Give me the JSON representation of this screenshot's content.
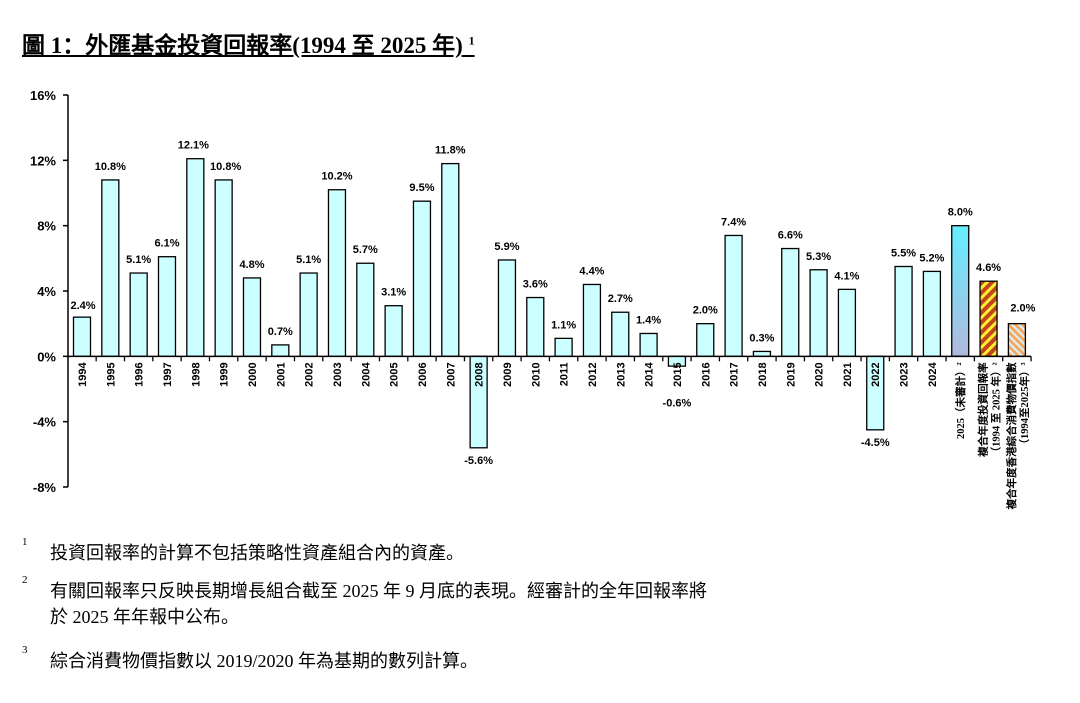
{
  "title": "圖 1：外匯基金投資回報率(1994 至 2025 年)",
  "title_note": "1",
  "chart_data": {
    "type": "bar",
    "title": "圖 1：外匯基金投資回報率(1994 至 2025 年)",
    "ylim": [
      -8,
      16
    ],
    "yticks": [
      "-8%",
      "-4%",
      "0%",
      "4%",
      "8%",
      "12%",
      "16%"
    ],
    "ytick_values": [
      -8,
      -4,
      0,
      4,
      8,
      12,
      16
    ],
    "grid": false,
    "categories": [
      "1994",
      "1995",
      "1996",
      "1997",
      "1998",
      "1999",
      "2000",
      "2001",
      "2002",
      "2003",
      "2004",
      "2005",
      "2006",
      "2007",
      "2008",
      "2009",
      "2010",
      "2011",
      "2012",
      "2013",
      "2014",
      "2015",
      "2016",
      "2017",
      "2018",
      "2019",
      "2020",
      "2021",
      "2022",
      "2023",
      "2024",
      "2025（未審計）²",
      "複合年度投資回報率（1994 至 2025 年）²",
      "複合年度香港綜合消費物價指數（1994至2025年）³"
    ],
    "values": [
      2.4,
      10.8,
      5.1,
      6.1,
      12.1,
      10.8,
      4.8,
      0.7,
      5.1,
      10.2,
      5.7,
      3.1,
      9.5,
      11.8,
      -5.6,
      5.9,
      3.6,
      1.1,
      4.4,
      2.7,
      1.4,
      -0.6,
      2.0,
      7.4,
      0.3,
      6.6,
      5.3,
      4.1,
      -4.5,
      5.5,
      5.2,
      8.0,
      4.6,
      2.0
    ],
    "data_labels": [
      "2.4%",
      "10.8%",
      "5.1%",
      "6.1%",
      "12.1%",
      "10.8%",
      "4.8%",
      "0.7%",
      "5.1%",
      "10.2%",
      "5.7%",
      "3.1%",
      "9.5%",
      "11.8%",
      "-5.6%",
      "5.9%",
      "3.6%",
      "1.1%",
      "4.4%",
      "2.7%",
      "1.4%",
      "-0.6%",
      "2.0%",
      "7.4%",
      "0.3%",
      "6.6%",
      "5.3%",
      "4.1%",
      "-4.5%",
      "5.5%",
      "5.2%",
      "8.0%",
      "4.6%",
      "2.0%"
    ],
    "colors": {
      "annual": "#ccffff",
      "current_top": "#66eeff",
      "current_bottom": "#b0b8dd",
      "composite": "#c0451a",
      "composite_stripe": "#ffee33",
      "cpi": "#f6a860",
      "cpi_stripe": "#d8f4ff",
      "outline": "#000000"
    }
  },
  "footnotes": [
    {
      "num": "1",
      "lines": [
        "投資回報率的計算不包括策略性資產組合內的資產。"
      ]
    },
    {
      "num": "2",
      "lines": [
        "有關回報率只反映長期增長組合截至 2025 年 9 月底的表現。經審計的全年回報率將",
        "於 2025 年年報中公布。"
      ]
    },
    {
      "num": "3",
      "lines": [
        "綜合消費物價指數以 2019/2020 年為基期的數列計算。"
      ]
    }
  ]
}
